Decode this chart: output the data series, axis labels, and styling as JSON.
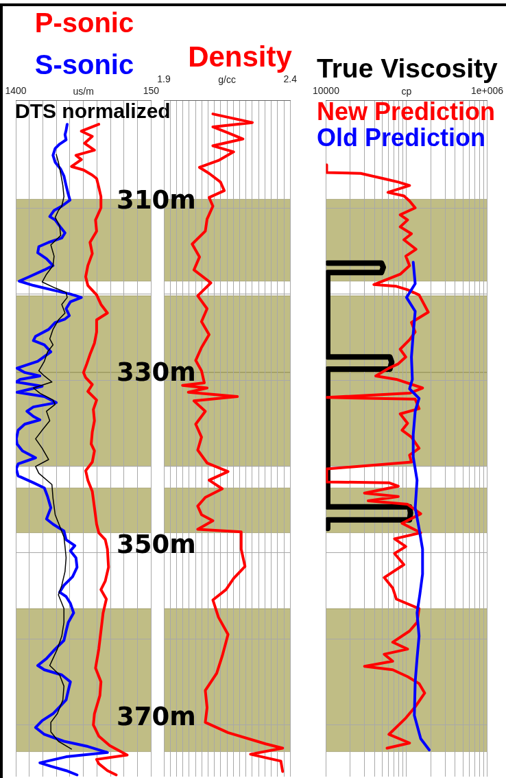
{
  "chart_data": [
    {
      "type": "line",
      "xlabel": "us/m",
      "xlim": [
        1400,
        150
      ],
      "xticks": [
        1400,
        {
          "value": 1275,
          "label": null
        },
        {
          "value": 1150,
          "label": null
        },
        {
          "value": 1025,
          "label": null
        },
        {
          "value": 900,
          "label": null
        },
        {
          "value": 775,
          "label": null
        },
        {
          "value": 650,
          "label": null
        },
        {
          "value": 525,
          "label": null
        },
        {
          "value": 400,
          "label": null
        },
        {
          "value": 275,
          "label": null
        },
        150
      ],
      "ylim": [
        376,
        297.5
      ],
      "yticks": [
        310,
        320,
        330,
        340,
        350,
        360,
        370
      ],
      "tick_labels": "x",
      "grid": true,
      "legend": "top",
      "bands": [
        {
          "axis": "y",
          "from": 309,
          "to": 318.5,
          "color": "#c0bd85"
        },
        {
          "axis": "y",
          "from": 320.2,
          "to": 329.1,
          "color": "#c0bd85"
        },
        {
          "axis": "y",
          "from": 329.1,
          "to": 340,
          "color": "#c0bd85"
        },
        {
          "axis": "y",
          "from": 342.5,
          "to": 347.7,
          "color": "#c0bd85"
        },
        {
          "axis": "y",
          "from": 356.5,
          "to": 373.1,
          "color": "#c0bd85"
        }
      ],
      "series": [
        {
          "name": "P-sonic",
          "color": "#ff0000",
          "x": [
            633,
            794,
            693,
            764,
            673,
            844,
            794,
            885,
            774,
            693,
            653,
            633,
            613,
            613,
            663,
            653,
            714,
            693,
            734,
            754,
            734,
            653,
            613,
            553,
            653,
            653,
            673,
            714,
            744,
            774,
            754,
            693,
            734,
            653,
            683,
            673,
            693,
            703,
            673,
            693,
            754,
            734,
            693,
            673,
            653,
            633,
            573,
            553,
            543,
            573,
            613,
            563,
            593,
            613,
            633,
            663,
            613,
            623,
            673,
            683,
            633,
            532,
            371,
            653,
            633,
            553,
            472
          ],
          "values": [
            300.3,
            301.1,
            301.7,
            302.5,
            303.3,
            303.9,
            304.4,
            305.2,
            305.6,
            306.2,
            306.6,
            307.6,
            308.7,
            310.0,
            311.4,
            312.7,
            314.0,
            315.3,
            316.7,
            318.0,
            319.0,
            320.1,
            321.2,
            322.2,
            323.0,
            324.4,
            325.7,
            327.0,
            328.1,
            329.1,
            329.7,
            330.5,
            331.3,
            332.3,
            333.4,
            334.7,
            336.0,
            337.4,
            338.2,
            339.5,
            340.5,
            341.6,
            342.9,
            344.8,
            346.7,
            347.7,
            348.5,
            349.6,
            351.7,
            353.3,
            354.3,
            355.4,
            357.0,
            359.1,
            361.2,
            363.4,
            365.0,
            366.6,
            368.7,
            370.0,
            371.3,
            372.4,
            373.5,
            374.0,
            374.5,
            375.3,
            375.8
          ]
        },
        {
          "name": "S-sonic",
          "color": "#0000ff",
          "x": [
            925,
            935,
            945,
            935,
            995,
            1036,
            1056,
            1036,
            985,
            955,
            935,
            915,
            899,
            975,
            1046,
            1086,
            1036,
            995,
            945,
            975,
            1096,
            1187,
            1197,
            1116,
            1056,
            1136,
            1277,
            1368,
            1237,
            1036,
            895,
            794,
            895,
            935,
            905,
            945,
            1036,
            1096,
            1217,
            1237,
            1136,
            1076,
            1197,
            1388,
            1317,
            1177,
            1358,
            1395,
            1156,
            1388,
            1136,
            1026,
            1237,
            1297,
            1237,
            1177,
            1317,
            1378,
            1395,
            1388,
            1338,
            1217,
            1378,
            1395,
            1378,
            1237,
            1136,
            1106,
            1076,
            1116,
            1056,
            955,
            935,
            854,
            895,
            844,
            834,
            875,
            955,
            995,
            935,
            895,
            865,
            915,
            935,
            955,
            1036,
            1116,
            1197,
            1136,
            975,
            895,
            915,
            935,
            995,
            1056,
            1156,
            1217,
            1136,
            955,
            734,
            553,
            935,
            1177,
            1076,
            935,
            834
          ],
          "values": [
            300.3,
            301.0,
            301.5,
            302.1,
            302.6,
            303.1,
            303.9,
            304.7,
            305.5,
            306.3,
            307.4,
            308.4,
            309.1,
            309.8,
            310.3,
            311.0,
            311.4,
            312.1,
            312.9,
            313.5,
            314.0,
            314.5,
            315.2,
            315.9,
            316.7,
            317.2,
            318.0,
            318.5,
            319.0,
            319.6,
            320.0,
            320.4,
            320.9,
            321.7,
            322.5,
            322.9,
            323.3,
            324.1,
            324.9,
            325.4,
            325.9,
            326.7,
            327.8,
            328.6,
            329.1,
            329.5,
            329.9,
            330.2,
            330.7,
            331.4,
            331.9,
            332.6,
            333.1,
            333.6,
            334.2,
            334.6,
            335.1,
            335.8,
            336.8,
            337.4,
            338.2,
            339.0,
            339.7,
            340.3,
            341.1,
            341.9,
            342.5,
            343.5,
            344.8,
            346.1,
            346.7,
            347.5,
            348.5,
            349.2,
            349.8,
            350.6,
            351.7,
            352.8,
            353.8,
            354.6,
            355.1,
            355.9,
            357.0,
            358.1,
            359.1,
            360.2,
            361.2,
            362.3,
            363.1,
            363.6,
            364.2,
            365.0,
            366.0,
            367.1,
            367.9,
            368.7,
            369.5,
            370.3,
            371.1,
            371.9,
            372.5,
            373.2,
            373.7,
            374.4,
            374.8,
            375.3,
            375.8
          ]
        },
        {
          "name": "DTS normalized",
          "color": "#000000",
          "x": [
            1026,
            1006,
            985,
            965,
            955,
            975,
            1006,
            1036,
            995,
            985,
            1076,
            1046,
            1056,
            1116,
            1156,
            1036,
            935,
            925,
            975,
            945,
            1006,
            1056,
            1086,
            1056,
            1106,
            1136,
            1187,
            1136,
            1066,
            1237,
            1177,
            1056,
            1036,
            1116,
            1086,
            1156,
            1217,
            1156,
            1096,
            1217,
            1187,
            1066,
            1056,
            1036,
            995,
            955,
            945,
            935,
            945,
            975,
            1006,
            955,
            955,
            975,
            1016,
            1056,
            1086,
            995,
            955,
            965,
            1016,
            1076,
            1076,
            1006,
            885
          ],
          "values": [
            303.8,
            304.7,
            306.0,
            307.4,
            308.7,
            309.8,
            310.3,
            311.1,
            312.1,
            313.2,
            314.3,
            315.6,
            316.7,
            317.7,
            318.6,
            319.3,
            319.8,
            320.4,
            321.2,
            322.2,
            323.0,
            324.1,
            325.2,
            325.9,
            326.7,
            327.8,
            328.9,
            329.5,
            330.2,
            330.9,
            331.5,
            332.3,
            332.8,
            333.6,
            334.7,
            335.8,
            336.8,
            337.9,
            339.2,
            340.0,
            340.8,
            342.1,
            343.7,
            345.6,
            346.9,
            348.2,
            349.3,
            350.6,
            352.2,
            353.8,
            354.9,
            356.5,
            358.1,
            359.7,
            361.2,
            362.3,
            363.1,
            364.2,
            365.5,
            367.1,
            368.7,
            369.7,
            370.8,
            371.9,
            372.8
          ]
        }
      ]
    },
    {
      "type": "line",
      "xlabel": "g/cc",
      "xlim": [
        1.9,
        2.4
      ],
      "xticks": [
        1.9,
        {
          "value": 1.925,
          "label": null
        },
        {
          "value": 1.95,
          "label": null
        },
        {
          "value": 1.975,
          "label": null
        },
        {
          "value": 2.0,
          "label": null
        },
        {
          "value": 2.025,
          "label": null
        },
        {
          "value": 2.05,
          "label": null
        },
        {
          "value": 2.075,
          "label": null
        },
        {
          "value": 2.1,
          "label": null
        },
        {
          "value": 2.125,
          "label": null
        },
        {
          "value": 2.15,
          "label": null
        },
        {
          "value": 2.175,
          "label": null
        },
        {
          "value": 2.2,
          "label": null
        },
        {
          "value": 2.225,
          "label": null
        },
        {
          "value": 2.25,
          "label": null
        },
        {
          "value": 2.275,
          "label": null
        },
        {
          "value": 2.3,
          "label": null
        },
        {
          "value": 2.325,
          "label": null
        },
        {
          "value": 2.35,
          "label": null
        },
        {
          "value": 2.375,
          "label": null
        },
        2.4
      ],
      "ylim": [
        376,
        297.5
      ],
      "yticks": [
        {
          "value": 310,
          "label": "310m"
        },
        {
          "value": 320,
          "label": null
        },
        {
          "value": 330,
          "label": "330m"
        },
        {
          "value": 340,
          "label": null
        },
        {
          "value": 350,
          "label": "350m"
        },
        {
          "value": 360,
          "label": null
        },
        {
          "value": 370,
          "label": "370m"
        }
      ],
      "grid": true,
      "legend": "top",
      "bands": [
        {
          "axis": "y",
          "from": 309,
          "to": 318.5,
          "color": "#c0bd85"
        },
        {
          "axis": "y",
          "from": 320.2,
          "to": 329.1,
          "color": "#c0bd85"
        },
        {
          "axis": "y",
          "from": 329.1,
          "to": 340,
          "color": "#c0bd85"
        },
        {
          "axis": "y",
          "from": 342.5,
          "to": 347.7,
          "color": "#c0bd85"
        },
        {
          "axis": "y",
          "from": 356.5,
          "to": 373.1,
          "color": "#c0bd85"
        }
      ],
      "series": [
        {
          "name": "Density",
          "color": "#ff0000",
          "x": [
            2.094,
            2.25,
            2.094,
            2.154,
            2.213,
            2.094,
            2.176,
            2.116,
            2.041,
            2.079,
            2.124,
            2.139,
            2.079,
            2.094,
            2.071,
            2.064,
            2.012,
            2.041,
            2.019,
            2.086,
            2.034,
            2.071,
            2.049,
            2.079,
            2.049,
            2.026,
            2.049,
            2.06,
            1.974,
            2.071,
            1.997,
            2.191,
            2.019,
            2.064,
            2.026,
            2.049,
            2.034,
            2.071,
            2.154,
            2.079,
            2.131,
            2.064,
            2.034,
            2.049,
            2.094,
            2.034,
            2.206,
            2.206,
            2.221,
            2.176,
            2.146,
            2.094,
            2.116,
            2.154,
            2.131,
            2.109,
            2.064,
            2.071,
            2.064,
            2.154,
            2.303,
            2.37,
            2.243,
            2.363,
            2.37
          ],
          "values": [
            299.1,
            300.1,
            300.6,
            301.3,
            302.0,
            302.8,
            303.5,
            304.5,
            305.3,
            306.0,
            307.0,
            308.0,
            308.8,
            309.8,
            311.3,
            312.7,
            314.2,
            315.7,
            317.2,
            318.7,
            320.2,
            321.7,
            323.2,
            324.7,
            326.2,
            327.7,
            328.9,
            330.3,
            330.6,
            330.9,
            331.4,
            331.9,
            332.4,
            333.6,
            335.1,
            336.6,
            338.1,
            339.6,
            340.6,
            341.6,
            342.6,
            343.6,
            344.6,
            345.6,
            346.3,
            347.3,
            347.6,
            349.6,
            351.6,
            353.0,
            354.3,
            355.5,
            357.5,
            359.5,
            362.0,
            364.0,
            366.0,
            368.0,
            369.7,
            370.9,
            372.2,
            372.7,
            373.4,
            374.2,
            375.4
          ]
        }
      ]
    },
    {
      "type": "line",
      "xlabel": "cp",
      "log": "x",
      "xlim": [
        10000,
        1000000
      ],
      "xticks": [
        10000,
        {
          "value": 20000,
          "label": null
        },
        {
          "value": 30000,
          "label": null
        },
        {
          "value": 40000,
          "label": null
        },
        {
          "value": 50000,
          "label": null
        },
        {
          "value": 60000,
          "label": null
        },
        {
          "value": 70000,
          "label": null
        },
        {
          "value": 80000,
          "label": null
        },
        {
          "value": 90000,
          "label": null
        },
        {
          "value": 100000,
          "label": null
        },
        {
          "value": 200000,
          "label": null
        },
        {
          "value": 300000,
          "label": null
        },
        {
          "value": 400000,
          "label": null
        },
        {
          "value": 500000,
          "label": null
        },
        {
          "value": 600000,
          "label": null
        },
        {
          "value": 700000,
          "label": null
        },
        {
          "value": 800000,
          "label": null
        },
        {
          "value": 900000,
          "label": null
        },
        {
          "value": 1000000,
          "label": "1e+006"
        }
      ],
      "ylim": [
        376,
        297.5
      ],
      "yticks": [
        310,
        320,
        330,
        340,
        350,
        360,
        370
      ],
      "tick_labels": "x",
      "grid": true,
      "legend": "top",
      "bands": [
        {
          "axis": "y",
          "from": 309,
          "to": 318.5,
          "color": "#c0bd85"
        },
        {
          "axis": "y",
          "from": 320.2,
          "to": 329.1,
          "color": "#c0bd85"
        },
        {
          "axis": "y",
          "from": 329.1,
          "to": 340,
          "color": "#c0bd85"
        },
        {
          "axis": "y",
          "from": 342.5,
          "to": 347.7,
          "color": "#c0bd85"
        },
        {
          "axis": "y",
          "from": 356.5,
          "to": 373.1,
          "color": "#c0bd85"
        }
      ],
      "series": [
        {
          "name": "True Viscosity",
          "color": "#000000",
          "x": [
            10500,
            48800,
            51400,
            48800,
            10500,
            10500,
            62100,
            65500,
            62100,
            10500,
            10500,
            109000,
            112000,
            109000,
            10500,
            10500
          ],
          "values": [
            316.4,
            316.4,
            316.9,
            317.5,
            317.5,
            327.3,
            327.3,
            327.9,
            328.7,
            328.7,
            344.7,
            344.7,
            345.4,
            346.2,
            346.2,
            347.2
          ]
        },
        {
          "name": "New Prediction",
          "color": "#ff0000",
          "x": [
            10200,
            10200,
            27000,
            51400,
            78900,
            109000,
            58800,
            92700,
            109000,
            128000,
            83400,
            103000,
            83400,
            115000,
            92700,
            131000,
            97900,
            109000,
            83400,
            39300,
            74800,
            103000,
            143000,
            186000,
            115000,
            128000,
            109000,
            83400,
            97900,
            78900,
            60400,
            41500,
            74800,
            158000,
            109000,
            10200,
            128000,
            143000,
            83400,
            103000,
            88000,
            115000,
            143000,
            109000,
            115000,
            10200,
            10200,
            60400,
            78900,
            30100,
            78900,
            33400,
            103000,
            150000,
            88000,
            150000,
            70900,
            97900,
            70900,
            92700,
            52800,
            67300,
            74800,
            143000,
            135000,
            109000,
            67300,
            103000,
            52800,
            67300,
            30100,
            67300,
            103000,
            143000,
            168000,
            128000,
            97900,
            60400,
            109000,
            57300
          ],
          "values": [
            305.0,
            305.9,
            306.0,
            306.6,
            307.0,
            307.4,
            308.2,
            308.6,
            309.2,
            310.0,
            310.8,
            311.4,
            312.2,
            313.0,
            313.7,
            314.8,
            315.6,
            316.7,
            317.7,
            318.9,
            319.1,
            319.5,
            320.1,
            322.1,
            323.3,
            324.4,
            325.3,
            326.4,
            327.3,
            328.1,
            328.6,
            329.5,
            329.9,
            330.9,
            331.5,
            332.0,
            332.2,
            333.3,
            333.9,
            335.0,
            335.8,
            336.6,
            337.9,
            338.7,
            339.5,
            340.3,
            341.8,
            341.9,
            342.3,
            343.1,
            343.5,
            344.0,
            344.4,
            345.5,
            346.6,
            347.7,
            348.4,
            349.3,
            350.1,
            351.4,
            352.9,
            354.1,
            355.4,
            356.5,
            358.1,
            359.1,
            360.4,
            361.2,
            361.8,
            362.6,
            363.2,
            363.6,
            364.4,
            365.2,
            366.3,
            367.9,
            369.2,
            371.1,
            372.1,
            372.7
          ]
        },
        {
          "name": "Old Prediction",
          "color": "#0000ff",
          "x": [
            121000,
            128000,
            100000,
            128000,
            121000,
            115000,
            118000,
            109000,
            143000,
            128000,
            121000,
            121000,
            135000,
            128000,
            143000,
            158000,
            158000,
            146000,
            135000,
            143000,
            135000,
            128000,
            125000,
            150000,
            191000
          ],
          "values": [
            316.3,
            318.8,
            320.4,
            322.0,
            324.6,
            327.3,
            329.9,
            331.0,
            332.1,
            333.6,
            336.3,
            338.9,
            341.6,
            344.8,
            347.2,
            349.6,
            352.5,
            354.9,
            357.0,
            359.7,
            362.3,
            365.0,
            368.9,
            371.6,
            372.9
          ]
        }
      ]
    }
  ]
}
